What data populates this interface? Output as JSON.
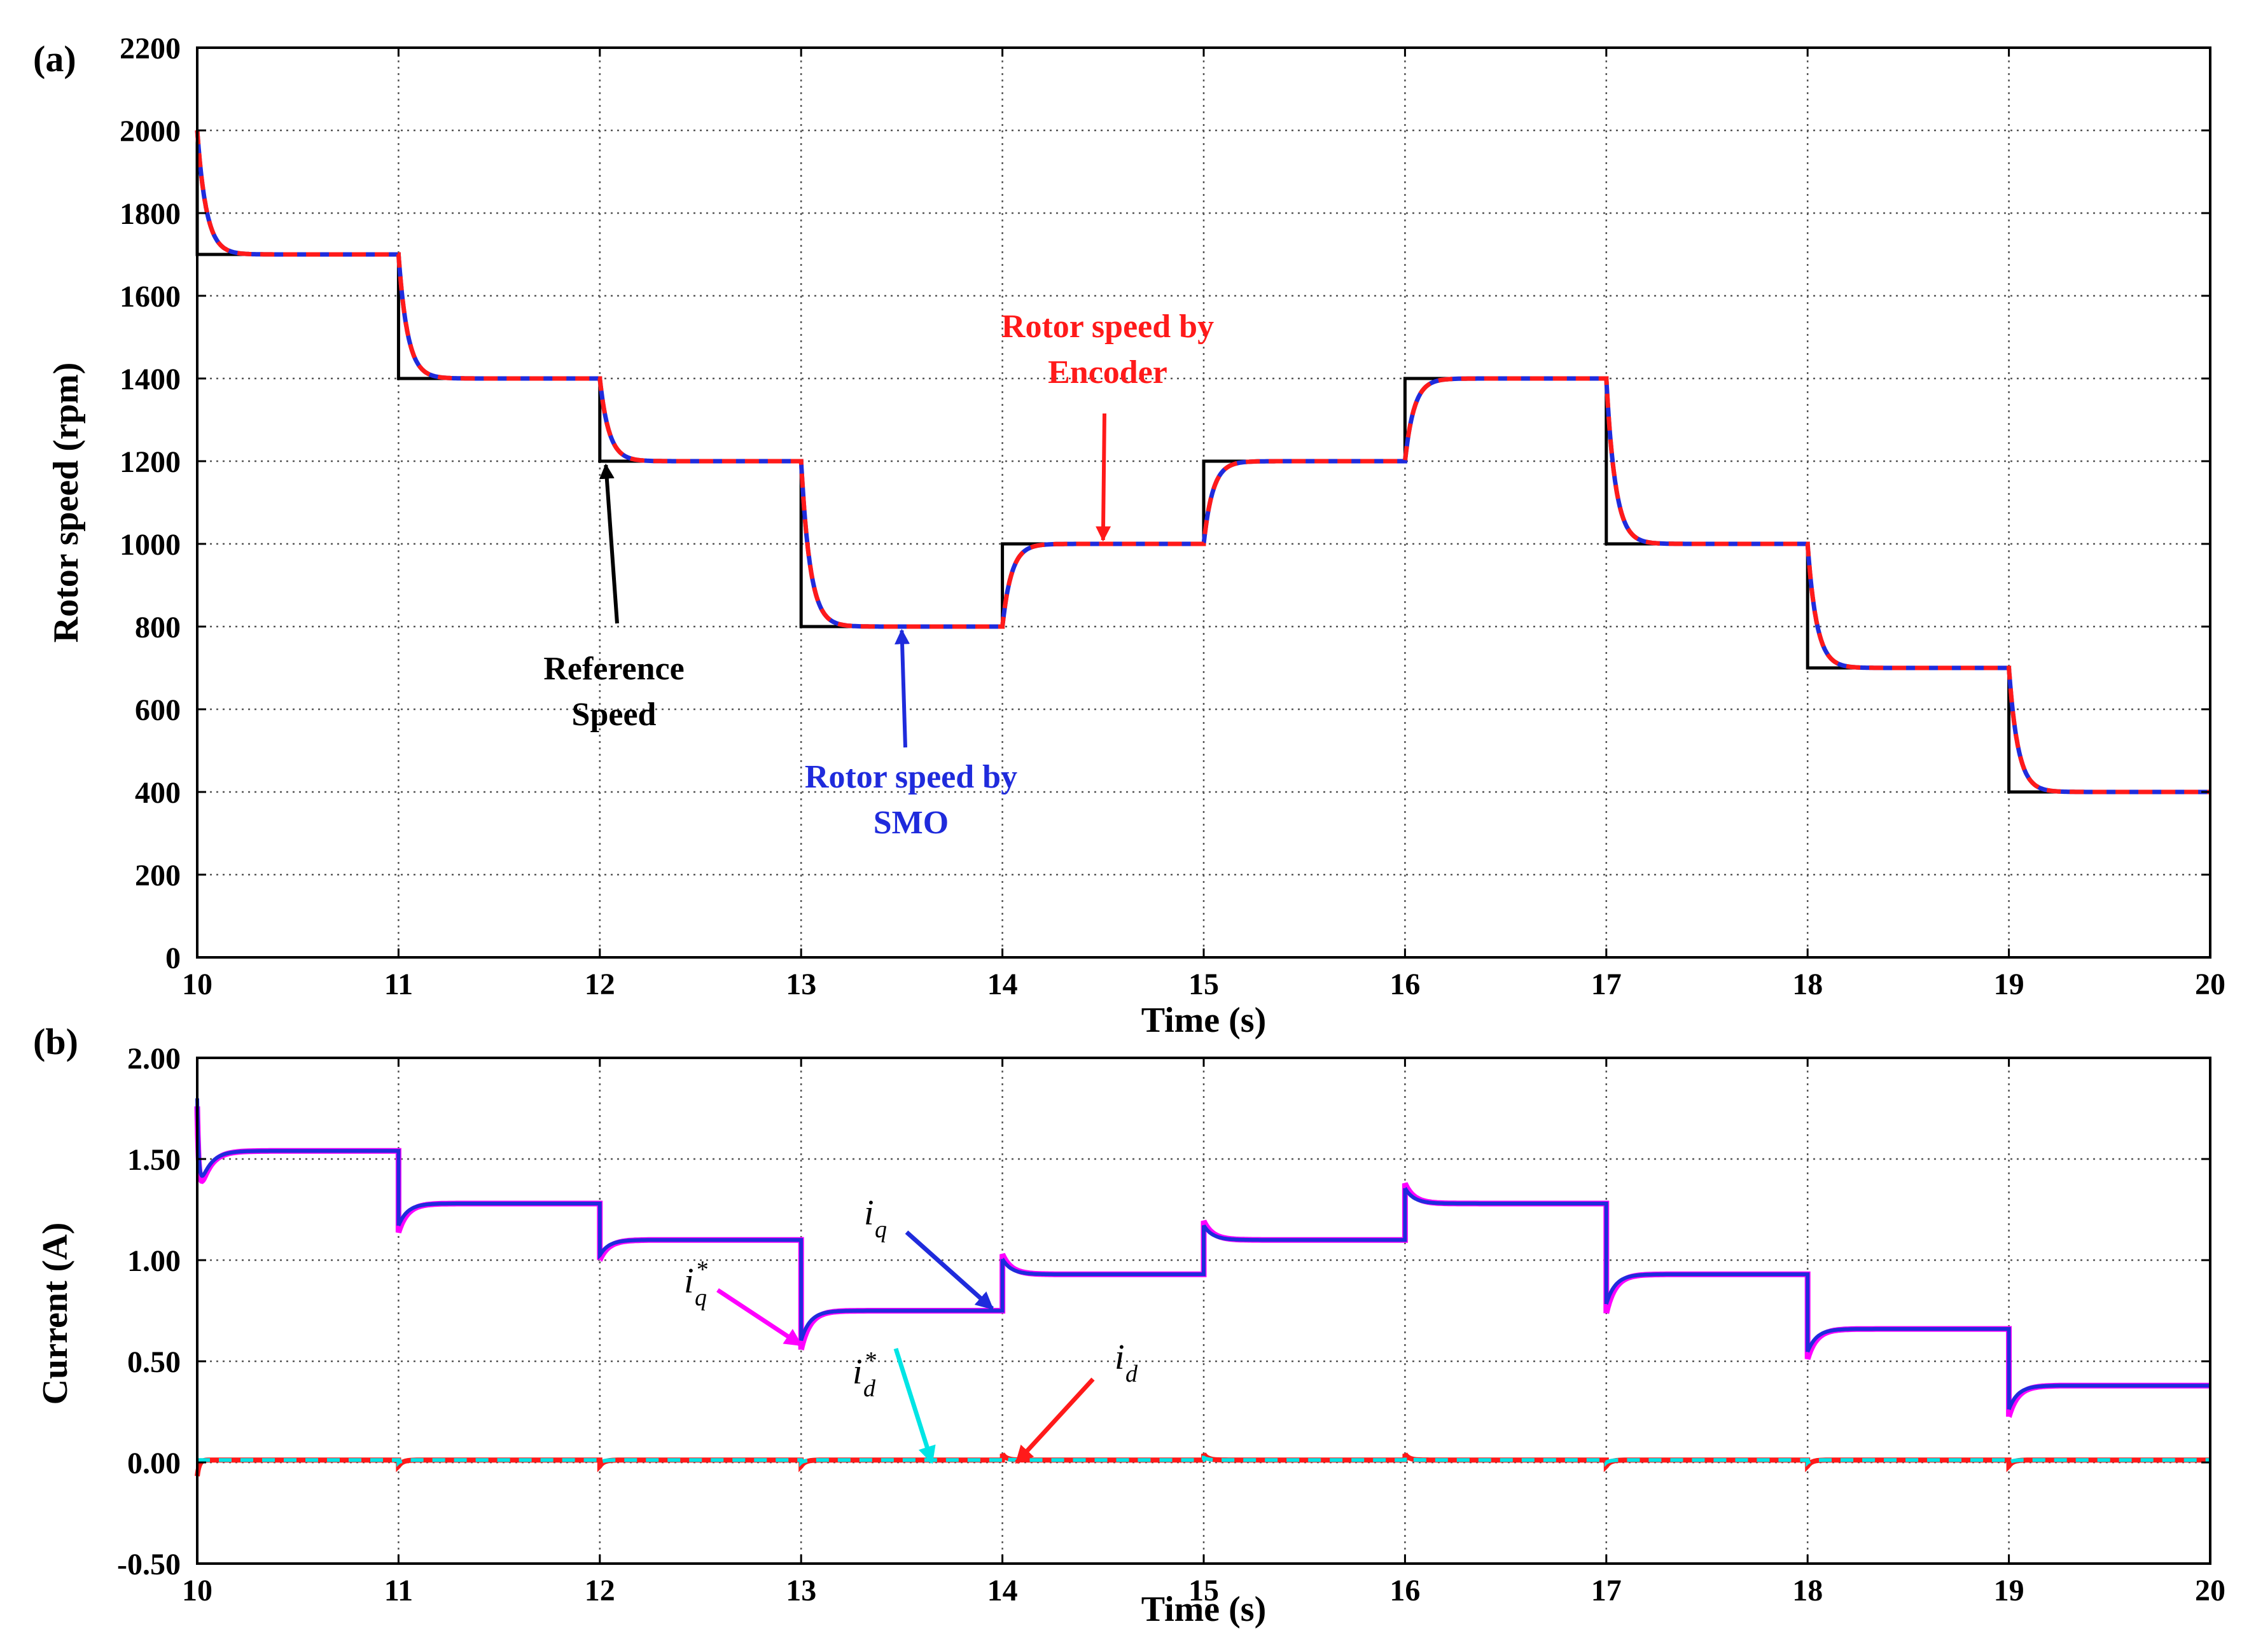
{
  "colors": {
    "reference": "#000000",
    "encoder": "#ff1a1a",
    "smo": "#1f2bdc",
    "iq": "#1f2bdc",
    "iq_ref": "#ff00ff",
    "id": "#ff1a1a",
    "id_ref": "#00e5e5"
  },
  "chart_data": [
    {
      "id": "a",
      "type": "line",
      "panel_label": "(a)",
      "title": "",
      "xlabel": "Time (s)",
      "ylabel": "Rotor speed (rpm)",
      "xlim": [
        10,
        20
      ],
      "ylim": [
        0,
        2200
      ],
      "xticks": [
        10,
        11,
        12,
        13,
        14,
        15,
        16,
        17,
        18,
        19,
        20
      ],
      "yticks": [
        0,
        200,
        400,
        600,
        800,
        1000,
        1200,
        1400,
        1600,
        1800,
        2000,
        2200
      ],
      "grid": true,
      "steps": {
        "times": [
          10,
          11,
          12,
          13,
          14,
          15,
          16,
          17,
          18,
          19
        ],
        "levels": [
          1700,
          1400,
          1200,
          800,
          1000,
          1200,
          1400,
          1000,
          700,
          400
        ],
        "initial_speed": 2000
      },
      "series": [
        {
          "name": "Reference Speed",
          "style": "solid",
          "color_key": "reference",
          "description": "step reference"
        },
        {
          "name": "Rotor speed by SMO",
          "style": "solid",
          "color_key": "smo",
          "description": "first-order response to reference"
        },
        {
          "name": "Rotor speed by Encoder",
          "style": "dashed",
          "color_key": "encoder",
          "description": "first-order response to reference"
        }
      ],
      "annotations": [
        {
          "id": "ref",
          "lines": [
            "Reference",
            "Speed"
          ],
          "color_key": "reference",
          "arrow_to": [
            12.03,
            1200
          ]
        },
        {
          "id": "smo",
          "lines": [
            "Rotor speed by",
            "SMO"
          ],
          "color_key": "smo",
          "arrow_to": [
            13.5,
            800
          ]
        },
        {
          "id": "enc",
          "lines": [
            "Rotor speed by",
            "Encoder"
          ],
          "color_key": "encoder",
          "arrow_to": [
            14.5,
            1000
          ]
        }
      ]
    },
    {
      "id": "b",
      "type": "line",
      "panel_label": "(b)",
      "title": "",
      "xlabel": "Time (s)",
      "ylabel": "Current (A)",
      "xlim": [
        10,
        20
      ],
      "ylim": [
        -0.5,
        2.0
      ],
      "xticks": [
        10,
        11,
        12,
        13,
        14,
        15,
        16,
        17,
        18,
        19,
        20
      ],
      "yticks": [
        "-0.50",
        "0.00",
        "0.50",
        "1.00",
        "1.50",
        "2.00"
      ],
      "grid": true,
      "steps": {
        "times": [
          10,
          11,
          12,
          13,
          14,
          15,
          16,
          17,
          18,
          19
        ],
        "iq_levels": [
          1.54,
          1.28,
          1.1,
          0.75,
          0.93,
          1.1,
          1.28,
          0.93,
          0.66,
          0.38
        ],
        "iq_start": 1.8,
        "id_level": 0.0
      },
      "series": [
        {
          "name": "i_q",
          "style": "solid",
          "color_key": "iq"
        },
        {
          "name": "i_q*",
          "style": "solid",
          "color_key": "iq_ref"
        },
        {
          "name": "i_d",
          "style": "dashed",
          "color_key": "id"
        },
        {
          "name": "i_d*",
          "style": "dashed",
          "color_key": "id_ref"
        }
      ],
      "annotations": [
        {
          "id": "iq",
          "base": "i",
          "sub": "q",
          "sup": "",
          "color_key": "iq",
          "arrow_to": [
            13.95,
            0.76
          ]
        },
        {
          "id": "iqs",
          "base": "i",
          "sub": "q",
          "sup": "*",
          "color_key": "iq_ref",
          "arrow_to": [
            13.0,
            0.58
          ]
        },
        {
          "id": "ids",
          "base": "i",
          "sub": "d",
          "sup": "*",
          "color_key": "id_ref",
          "arrow_to": [
            13.65,
            0.0
          ]
        },
        {
          "id": "id",
          "base": "i",
          "sub": "d",
          "sup": "",
          "color_key": "id",
          "arrow_to": [
            14.07,
            0.0
          ]
        }
      ]
    }
  ]
}
